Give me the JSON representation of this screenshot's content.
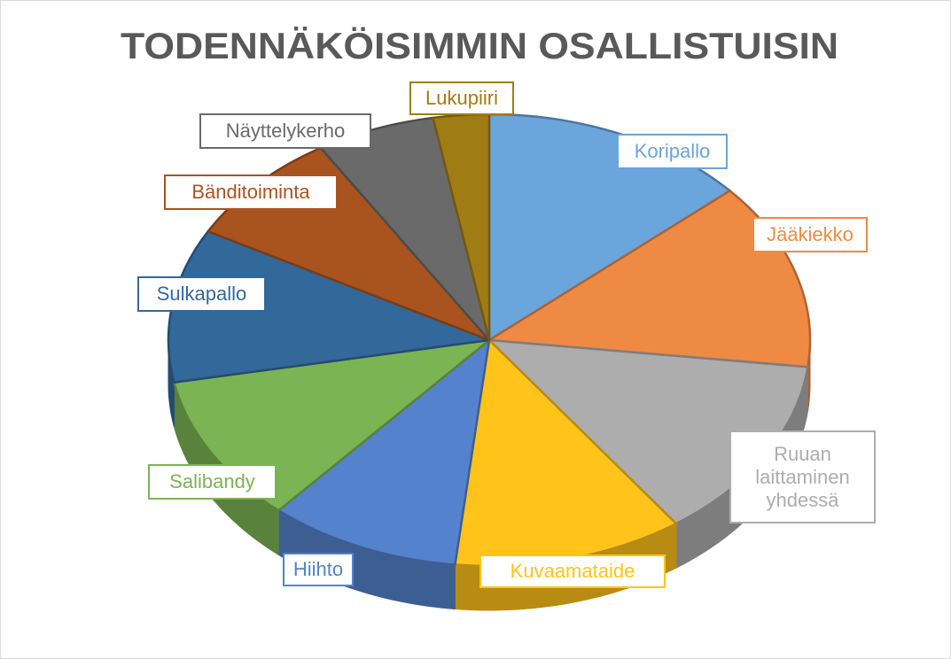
{
  "chart_data": {
    "type": "pie3d",
    "title": "TODENNÄKÖISIMMIN OSALLISTUISIN",
    "categories": [
      "Koripallo",
      "Jääkiekko",
      "Ruuan laittaminen yhdessä",
      "Kuvaamataide",
      "Hiihto",
      "Salibandy",
      "Sulkapallo",
      "Bänditoiminta",
      "Näyttelykerho",
      "Lukupiiri"
    ],
    "values": [
      13.5,
      13.4,
      13.2,
      11.6,
      9.7,
      10.6,
      11.0,
      8.2,
      6.0,
      2.8
    ],
    "colors": [
      "#6aa5db",
      "#ef8a45",
      "#adadad",
      "#ffc31a",
      "#5582cc",
      "#7bb453",
      "#33689b",
      "#a9541f",
      "#6a6a6a",
      "#a07c14"
    ]
  }
}
